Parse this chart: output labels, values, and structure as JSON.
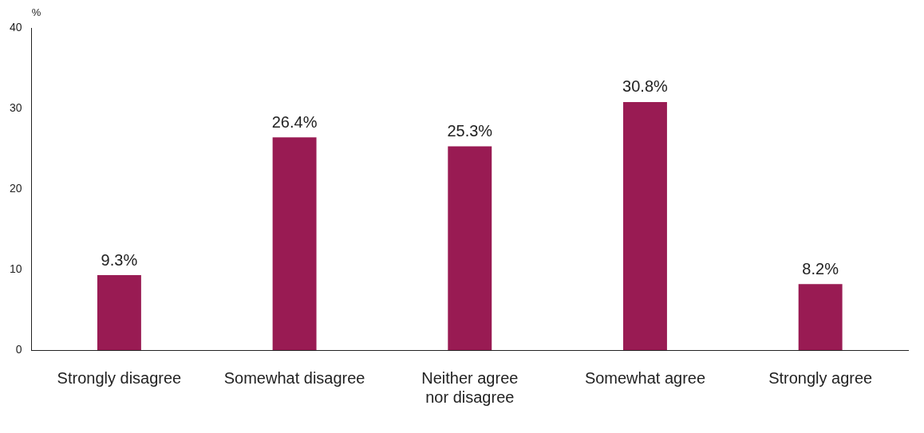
{
  "chart_data": {
    "type": "bar",
    "ylabel": "%",
    "categories": [
      "Strongly disagree",
      "Somewhat disagree",
      "Neither agree nor disagree",
      "Somewhat agree",
      "Strongly agree"
    ],
    "values": [
      9.3,
      26.4,
      25.3,
      30.8,
      8.2
    ],
    "value_labels": [
      "9.3%",
      "26.4%",
      "25.3%",
      "30.8%",
      "8.2%"
    ],
    "color": "#991b53",
    "ylim": [
      0,
      40
    ],
    "yticks": [
      0,
      10,
      20,
      30,
      40
    ],
    "grid": false,
    "legend": false
  }
}
